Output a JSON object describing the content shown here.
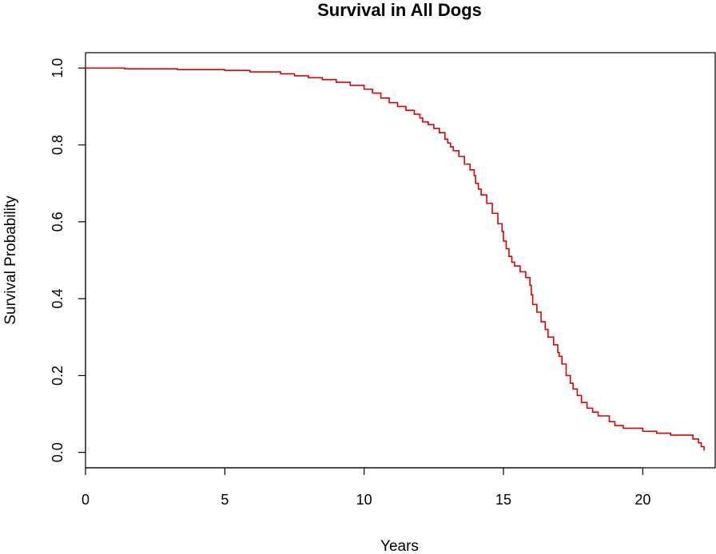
{
  "chart_data": {
    "type": "line",
    "step": true,
    "title": "Survival in All Dogs",
    "xlabel": "Years",
    "ylabel": "Survival Probability",
    "xlim": [
      0,
      22.6
    ],
    "ylim": [
      -0.04,
      1.04
    ],
    "xticks": [
      0,
      5,
      10,
      15,
      20
    ],
    "xtick_labels": [
      "0",
      "5",
      "10",
      "15",
      "20"
    ],
    "yticks": [
      0.0,
      0.2,
      0.4,
      0.6,
      0.8,
      1.0
    ],
    "ytick_labels": [
      "0.0",
      "0.2",
      "0.4",
      "0.6",
      "0.8",
      "1.0"
    ],
    "grid": false,
    "colors": {
      "series": "#e00000",
      "axes": "#000000"
    },
    "series": [
      {
        "x": [
          0,
          1.4,
          3.3,
          5,
          5.9,
          7,
          7.5,
          8,
          8.5,
          9,
          9.5,
          10,
          10.3,
          10.6,
          10.9,
          11.2,
          11.5,
          11.8,
          12,
          12.1,
          12.3,
          12.5,
          12.7,
          12.9,
          13,
          13.1,
          13.2,
          13.4,
          13.6,
          13.8,
          13.95,
          14,
          14.1,
          14.2,
          14.4,
          14.6,
          14.8,
          14.95,
          15,
          15.1,
          15.2,
          15.3,
          15.4,
          15.6,
          15.8,
          15.95,
          16,
          16.05,
          16.2,
          16.35,
          16.5,
          16.6,
          16.8,
          16.95,
          17,
          17.1,
          17.25,
          17.4,
          17.5,
          17.65,
          17.8,
          18,
          18.2,
          18.4,
          18.8,
          19,
          19.3,
          20,
          20.5,
          21,
          21.8,
          22,
          22.1,
          22.2
        ],
        "y": [
          1.0,
          0.998,
          0.996,
          0.994,
          0.99,
          0.985,
          0.98,
          0.975,
          0.97,
          0.963,
          0.955,
          0.945,
          0.935,
          0.922,
          0.91,
          0.9,
          0.89,
          0.88,
          0.87,
          0.86,
          0.853,
          0.843,
          0.832,
          0.815,
          0.805,
          0.795,
          0.785,
          0.77,
          0.75,
          0.735,
          0.72,
          0.7,
          0.685,
          0.67,
          0.648,
          0.622,
          0.595,
          0.575,
          0.55,
          0.53,
          0.51,
          0.495,
          0.485,
          0.47,
          0.455,
          0.435,
          0.41,
          0.385,
          0.365,
          0.34,
          0.32,
          0.3,
          0.28,
          0.26,
          0.25,
          0.23,
          0.2,
          0.18,
          0.165,
          0.148,
          0.13,
          0.115,
          0.105,
          0.095,
          0.08,
          0.07,
          0.063,
          0.055,
          0.05,
          0.045,
          0.035,
          0.025,
          0.015,
          0.005
        ]
      }
    ]
  }
}
